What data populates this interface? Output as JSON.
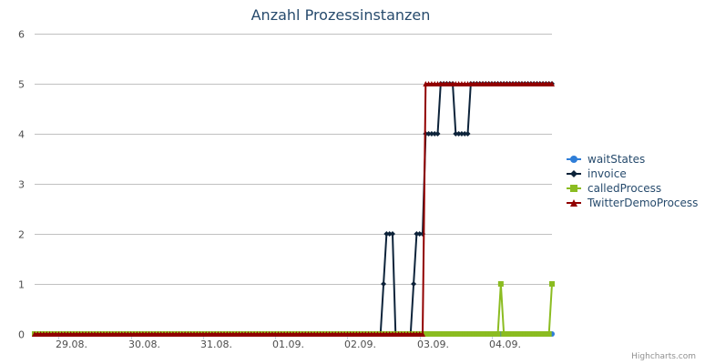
{
  "chart_data": {
    "type": "line",
    "title": "Anzahl Prozessinstanzen",
    "xlabel": "",
    "ylabel": "",
    "ylim": [
      0,
      6
    ],
    "xlim": [
      "2014-08-28T16:00",
      "2014-09-04T20:00"
    ],
    "x_ticks": [
      "29.08.",
      "30.08.",
      "31.08.",
      "01.09.",
      "02.09.",
      "03.09.",
      "04.09."
    ],
    "y_ticks": [
      0,
      1,
      2,
      3,
      4,
      5,
      6
    ],
    "grid": "horizontal",
    "legend": "right",
    "credits": "Highcharts.com",
    "series": [
      {
        "name": "waitStates",
        "color": "#2f7ed8",
        "marker": "circle",
        "points": [
          [
            "2014-08-28T16:00",
            0
          ],
          [
            "2014-09-04T20:00",
            0
          ]
        ]
      },
      {
        "name": "invoice",
        "color": "#0d233a",
        "marker": "diamond",
        "points": [
          [
            "2014-08-28T16:00",
            0
          ],
          [
            "2014-09-02T11:00",
            0
          ],
          [
            "2014-09-02T12:00",
            1
          ],
          [
            "2014-09-02T13:00",
            2
          ],
          [
            "2014-09-02T14:00",
            2
          ],
          [
            "2014-09-02T15:00",
            2
          ],
          [
            "2014-09-02T16:00",
            0
          ],
          [
            "2014-09-02T21:00",
            0
          ],
          [
            "2014-09-02T22:00",
            1
          ],
          [
            "2014-09-02T23:00",
            2
          ],
          [
            "2014-09-03T00:00",
            2
          ],
          [
            "2014-09-03T01:00",
            2
          ],
          [
            "2014-09-03T02:00",
            4
          ],
          [
            "2014-09-03T03:00",
            4
          ],
          [
            "2014-09-03T04:00",
            4
          ],
          [
            "2014-09-03T05:00",
            4
          ],
          [
            "2014-09-03T06:00",
            4
          ],
          [
            "2014-09-03T07:00",
            5
          ],
          [
            "2014-09-03T08:00",
            5
          ],
          [
            "2014-09-03T09:00",
            5
          ],
          [
            "2014-09-03T10:00",
            5
          ],
          [
            "2014-09-03T11:00",
            5
          ],
          [
            "2014-09-03T12:00",
            4
          ],
          [
            "2014-09-03T13:00",
            4
          ],
          [
            "2014-09-03T14:00",
            4
          ],
          [
            "2014-09-03T15:00",
            4
          ],
          [
            "2014-09-03T16:00",
            4
          ],
          [
            "2014-09-03T17:00",
            5
          ],
          [
            "2014-09-04T20:00",
            5
          ]
        ]
      },
      {
        "name": "calledProcess",
        "color": "#8bbc21",
        "marker": "square",
        "points": [
          [
            "2014-08-28T16:00",
            0
          ],
          [
            "2014-09-04T02:00",
            0
          ],
          [
            "2014-09-04T03:00",
            1
          ],
          [
            "2014-09-04T04:00",
            0
          ],
          [
            "2014-09-04T19:00",
            0
          ],
          [
            "2014-09-04T20:00",
            1
          ]
        ]
      },
      {
        "name": "TwitterDemoProcess",
        "color": "#910000",
        "marker": "triangle",
        "points": [
          [
            "2014-08-28T16:00",
            0
          ],
          [
            "2014-09-03T01:00",
            0
          ],
          [
            "2014-09-03T02:00",
            5
          ],
          [
            "2014-09-04T20:00",
            5
          ]
        ]
      }
    ]
  }
}
